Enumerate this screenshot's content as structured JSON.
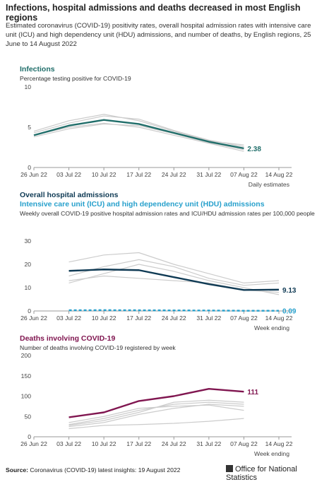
{
  "header": {
    "title": "Infections, hospital admissions and deaths decreased in most English regions",
    "subtitle": "Estimated coronavirus (COVID-19) positivity rates, overall hospital admission rates with intensive care unit (ICU) and high dependency unit (HDU) admissions, and number of deaths, by English regions, 25 June to 14 August 2022"
  },
  "footer": {
    "source_label": "Source:",
    "source": "Coronavirus (COVID-19) latest insights: 19 August 2022",
    "logo": "Office for National Statistics"
  },
  "chart_data": [
    {
      "type": "line",
      "title": "Infections",
      "subtitle": "Percentage testing positive for COVID-19",
      "x_note": "Daily estimates",
      "categories": [
        "26 Jun 22",
        "03 Jul 22",
        "10 Jul 22",
        "17 Jul 22",
        "24 Jul 22",
        "31 Jul 22",
        "07 Aug 22",
        "14 Aug 22"
      ],
      "ylim": [
        0,
        10
      ],
      "yticks": [
        0,
        5,
        10
      ],
      "series": [
        {
          "color": "#206e6a",
          "values": [
            4.0,
            5.2,
            5.9,
            5.4,
            4.3,
            3.2,
            2.38,
            null
          ]
        }
      ],
      "regional_series": [
        {
          "color": "#cccccc",
          "values": [
            4.3,
            5.5,
            6.4,
            6.0,
            4.6,
            3.4,
            2.6,
            null
          ]
        },
        {
          "color": "#cccccc",
          "values": [
            4.0,
            5.0,
            5.5,
            5.0,
            4.0,
            3.0,
            2.0,
            null
          ]
        },
        {
          "color": "#cccccc",
          "values": [
            4.5,
            5.8,
            6.6,
            5.8,
            4.5,
            3.3,
            2.8,
            null
          ]
        },
        {
          "color": "#cccccc",
          "values": [
            3.8,
            4.8,
            5.4,
            5.2,
            4.2,
            3.1,
            2.2,
            null
          ]
        }
      ]
    },
    {
      "type": "line",
      "title": "Overall hospital admissions",
      "second_title": "Intensive care unit (ICU) and high dependency unit (HDU) admissions",
      "subtitle": "Weekly overall COVID-19 positive hospital admission rates and ICU/HDU admission rates per 100,000 people",
      "x_note": "Week ending",
      "categories": [
        "26 Jun 22",
        "03 Jul 22",
        "10 Jul 22",
        "17 Jul 22",
        "24 Jul 22",
        "31 Jul 22",
        "07 Aug 22",
        "14 Aug 22"
      ],
      "ylim": [
        0,
        30
      ],
      "yticks": [
        0,
        10,
        20,
        30
      ],
      "series": [
        {
          "color": "#0f3a54",
          "values": [
            null,
            17.2,
            17.8,
            17.5,
            14.5,
            11.5,
            9.0,
            9.13
          ]
        },
        {
          "color": "#27a0cc",
          "dashed": true,
          "values": [
            null,
            0.3,
            0.35,
            0.3,
            0.25,
            0.2,
            0.1,
            0.09
          ]
        }
      ],
      "regional_series": [
        {
          "color": "#cccccc",
          "values": [
            null,
            21,
            24,
            25,
            20,
            16,
            12,
            13
          ]
        },
        {
          "color": "#cccccc",
          "values": [
            null,
            13,
            15,
            14,
            13,
            12,
            9,
            8
          ]
        },
        {
          "color": "#cccccc",
          "values": [
            null,
            12,
            16,
            20,
            17,
            13,
            10,
            7
          ]
        },
        {
          "color": "#cccccc",
          "values": [
            null,
            15,
            19,
            22,
            19,
            14,
            11,
            12
          ]
        }
      ]
    },
    {
      "type": "line",
      "title": "Deaths involving COVID-19",
      "subtitle": "Number of deaths involving COVID-19 registered by week",
      "x_note": "Week ending",
      "categories": [
        "26 Jun 22",
        "03 Jul 22",
        "10 Jul 22",
        "17 Jul 22",
        "24 Jul 22",
        "31 Jul 22",
        "07 Aug 22",
        "14 Aug 22"
      ],
      "ylim": [
        0,
        200
      ],
      "yticks": [
        0,
        50,
        100,
        150,
        200
      ],
      "series": [
        {
          "color": "#801650",
          "values": [
            null,
            48,
            60,
            88,
            100,
            118,
            111,
            null
          ]
        }
      ],
      "regional_series": [
        {
          "color": "#cccccc",
          "values": [
            null,
            25,
            35,
            55,
            70,
            80,
            75,
            null
          ]
        },
        {
          "color": "#cccccc",
          "values": [
            null,
            30,
            45,
            65,
            80,
            85,
            80,
            null
          ]
        },
        {
          "color": "#cccccc",
          "values": [
            null,
            20,
            28,
            30,
            33,
            38,
            45,
            null
          ]
        },
        {
          "color": "#cccccc",
          "values": [
            null,
            35,
            50,
            70,
            75,
            78,
            65,
            null
          ]
        },
        {
          "color": "#cccccc",
          "values": [
            null,
            28,
            40,
            60,
            85,
            90,
            85,
            null
          ]
        }
      ]
    }
  ]
}
